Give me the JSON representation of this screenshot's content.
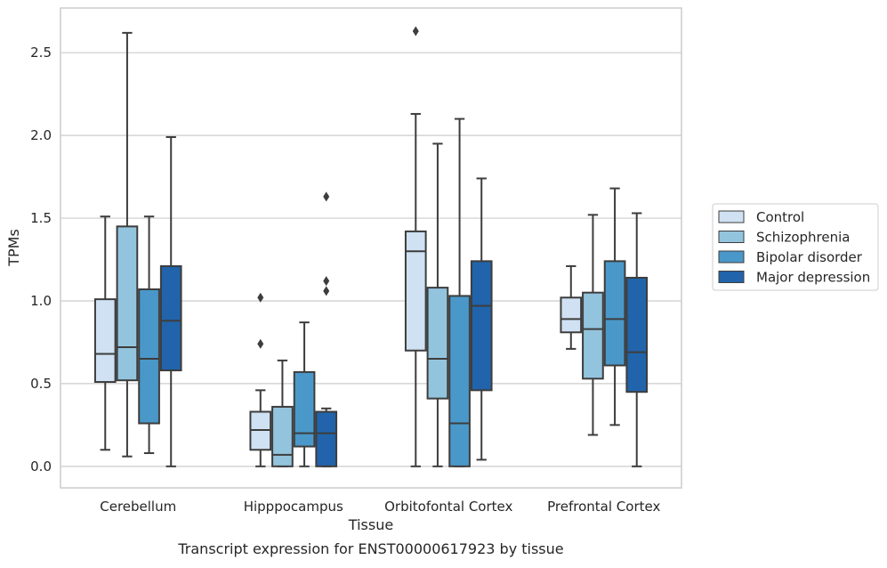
{
  "chart_data": {
    "type": "box",
    "caption": "Transcript expression for ENST00000617923 by tissue",
    "xlabel": "Tissue",
    "ylabel": "TPMs",
    "ylim": [
      -0.13,
      2.77
    ],
    "yticks": [
      0.0,
      0.5,
      1.0,
      1.5,
      2.0,
      2.5
    ],
    "ytick_labels": [
      "0.0",
      "0.5",
      "1.0",
      "1.5",
      "2.0",
      "2.5"
    ],
    "grid": "horizontal",
    "legend_position": "right",
    "categories": [
      "Cerebellum",
      "Hipppocampus",
      "Orbitofontal Cortex",
      "Prefrontal Cortex"
    ],
    "series": [
      {
        "name": "Control",
        "color": "#cfe1f2",
        "boxes": [
          {
            "whislo": 0.1,
            "q1": 0.51,
            "med": 0.68,
            "q3": 1.01,
            "whishi": 1.51,
            "fliers": []
          },
          {
            "whislo": 0.0,
            "q1": 0.1,
            "med": 0.22,
            "q3": 0.33,
            "whishi": 0.46,
            "fliers": [
              0.74,
              1.02
            ]
          },
          {
            "whislo": 0.0,
            "q1": 0.7,
            "med": 1.3,
            "q3": 1.42,
            "whishi": 2.13,
            "fliers": [
              2.63
            ]
          },
          {
            "whislo": 0.71,
            "q1": 0.81,
            "med": 0.89,
            "q3": 1.02,
            "whishi": 1.21,
            "fliers": []
          }
        ]
      },
      {
        "name": "Schizophrenia",
        "color": "#93c4de",
        "boxes": [
          {
            "whislo": 0.06,
            "q1": 0.52,
            "med": 0.72,
            "q3": 1.45,
            "whishi": 2.62,
            "fliers": []
          },
          {
            "whislo": 0.0,
            "q1": 0.0,
            "med": 0.07,
            "q3": 0.36,
            "whishi": 0.64,
            "fliers": []
          },
          {
            "whislo": 0.0,
            "q1": 0.41,
            "med": 0.65,
            "q3": 1.08,
            "whishi": 1.95,
            "fliers": []
          },
          {
            "whislo": 0.19,
            "q1": 0.53,
            "med": 0.83,
            "q3": 1.05,
            "whishi": 1.52,
            "fliers": []
          }
        ]
      },
      {
        "name": "Bipolar disorder",
        "color": "#4a98c9",
        "boxes": [
          {
            "whislo": 0.08,
            "q1": 0.26,
            "med": 0.65,
            "q3": 1.07,
            "whishi": 1.51,
            "fliers": []
          },
          {
            "whislo": 0.0,
            "q1": 0.12,
            "med": 0.2,
            "q3": 0.57,
            "whishi": 0.87,
            "fliers": []
          },
          {
            "whislo": 0.0,
            "q1": 0.0,
            "med": 0.26,
            "q3": 1.03,
            "whishi": 2.1,
            "fliers": []
          },
          {
            "whislo": 0.25,
            "q1": 0.61,
            "med": 0.89,
            "q3": 1.24,
            "whishi": 1.68,
            "fliers": []
          }
        ]
      },
      {
        "name": "Major depression",
        "color": "#2164ab",
        "boxes": [
          {
            "whislo": 0.0,
            "q1": 0.58,
            "med": 0.88,
            "q3": 1.21,
            "whishi": 1.99,
            "fliers": []
          },
          {
            "whislo": 0.0,
            "q1": 0.0,
            "med": 0.2,
            "q3": 0.33,
            "whishi": 0.35,
            "fliers": [
              1.06,
              1.12,
              1.63
            ]
          },
          {
            "whislo": 0.04,
            "q1": 0.46,
            "med": 0.97,
            "q3": 1.24,
            "whishi": 1.74,
            "fliers": []
          },
          {
            "whislo": 0.0,
            "q1": 0.45,
            "med": 0.69,
            "q3": 1.14,
            "whishi": 1.53,
            "fliers": []
          }
        ]
      }
    ]
  }
}
